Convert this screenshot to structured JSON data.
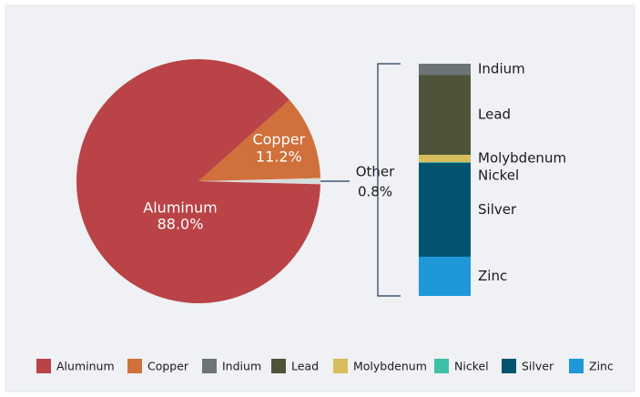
{
  "chart_data": [
    {
      "type": "pie",
      "categories": [
        "Aluminum",
        "Copper",
        "Other"
      ],
      "values": [
        88.0,
        11.2,
        0.8
      ],
      "value_labels": [
        "88.0%",
        "11.2%",
        "0.8%"
      ],
      "colors": [
        "#b94346",
        "#d0703a",
        "#d8dcdc"
      ]
    },
    {
      "type": "bar",
      "stacked": true,
      "series": [
        {
          "name": "Indium",
          "color": "#6d7478",
          "values": [
            0.038
          ]
        },
        {
          "name": "Lead",
          "color": "#4e543a",
          "values": [
            0.276
          ]
        },
        {
          "name": "Molybdenum",
          "color": "#d9bd5c",
          "values": [
            0.025
          ]
        },
        {
          "name": "Nickel",
          "color": "#3dbfa8",
          "values": [
            0.002
          ]
        },
        {
          "name": "Silver",
          "color": "#02546e",
          "values": [
            0.324
          ]
        },
        {
          "name": "Zinc",
          "color": "#1f98d9",
          "values": [
            0.135
          ]
        }
      ]
    }
  ]
}
